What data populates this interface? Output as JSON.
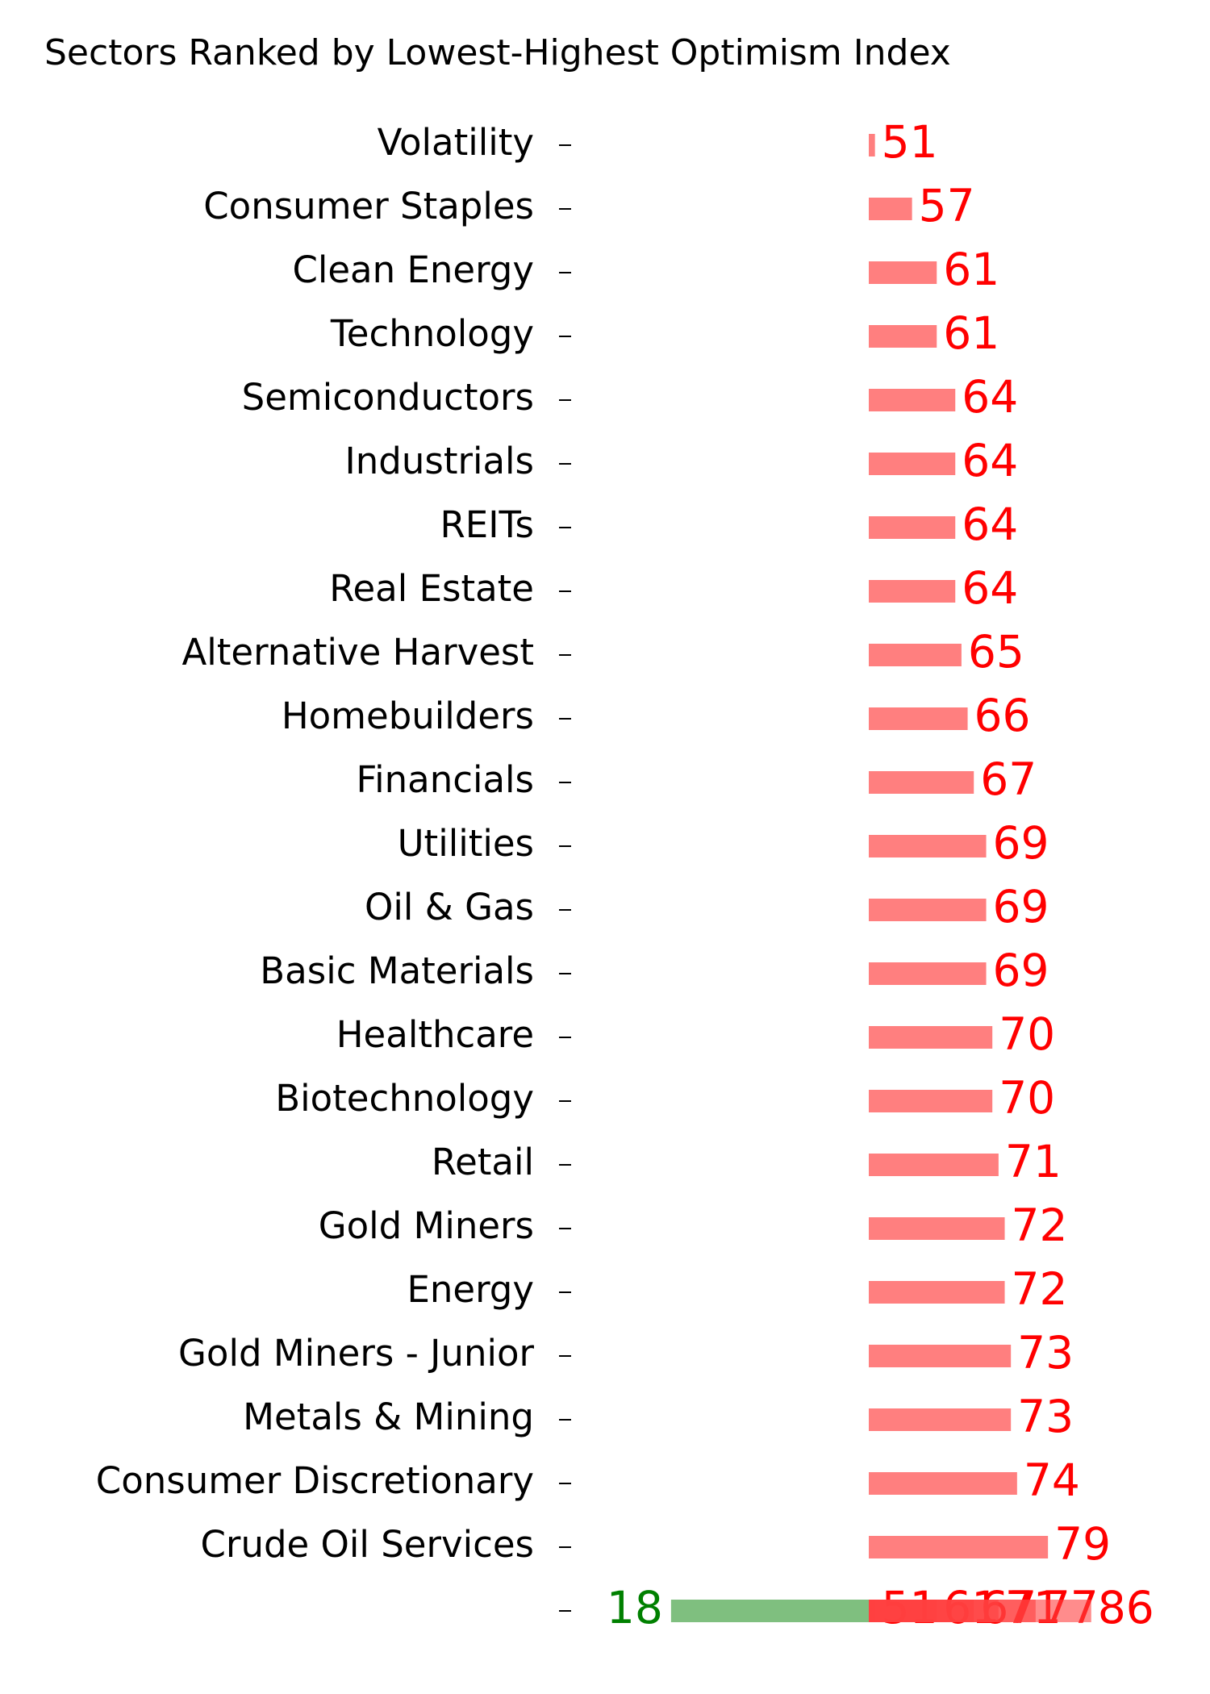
{
  "chart_data": {
    "type": "hbar",
    "title": "Sectors Ranked by Lowest-Highest Optimism Index",
    "categories": [
      "Volatility",
      "Consumer Staples",
      "Clean Energy",
      "Technology",
      "Semiconductors",
      "Industrials",
      "REITs",
      "Real Estate",
      "Alternative Harvest",
      "Homebuilders",
      "Financials",
      "Utilities",
      "Oil & Gas",
      "Basic Materials",
      "Healthcare",
      "Biotechnology",
      "Retail",
      "Gold Miners",
      "Energy",
      "Gold Miners - Junior",
      "Metals & Mining",
      "Consumer Discretionary",
      "Crude Oil Services",
      null
    ],
    "series": [
      {
        "color": "#ff7f7f",
        "label_color": "#ff0000",
        "values": [
          51,
          57,
          61,
          61,
          64,
          64,
          64,
          64,
          65,
          66,
          67,
          69,
          69,
          69,
          70,
          70,
          71,
          72,
          72,
          73,
          73,
          74,
          79,
          null
        ]
      },
      {
        "color": "#7fbf7f",
        "label_color": "#008000",
        "values": [
          null,
          null,
          null,
          null,
          null,
          null,
          null,
          null,
          null,
          null,
          null,
          null,
          null,
          null,
          null,
          null,
          null,
          null,
          null,
          null,
          null,
          null,
          null,
          18
        ]
      }
    ],
    "overlay_values": [
      51,
      61,
      67,
      71,
      77,
      86
    ],
    "overlay_color": "#ff4040",
    "overlay_label_color": "#ff0000",
    "base": 50,
    "xlim": [
      0,
      100
    ]
  }
}
